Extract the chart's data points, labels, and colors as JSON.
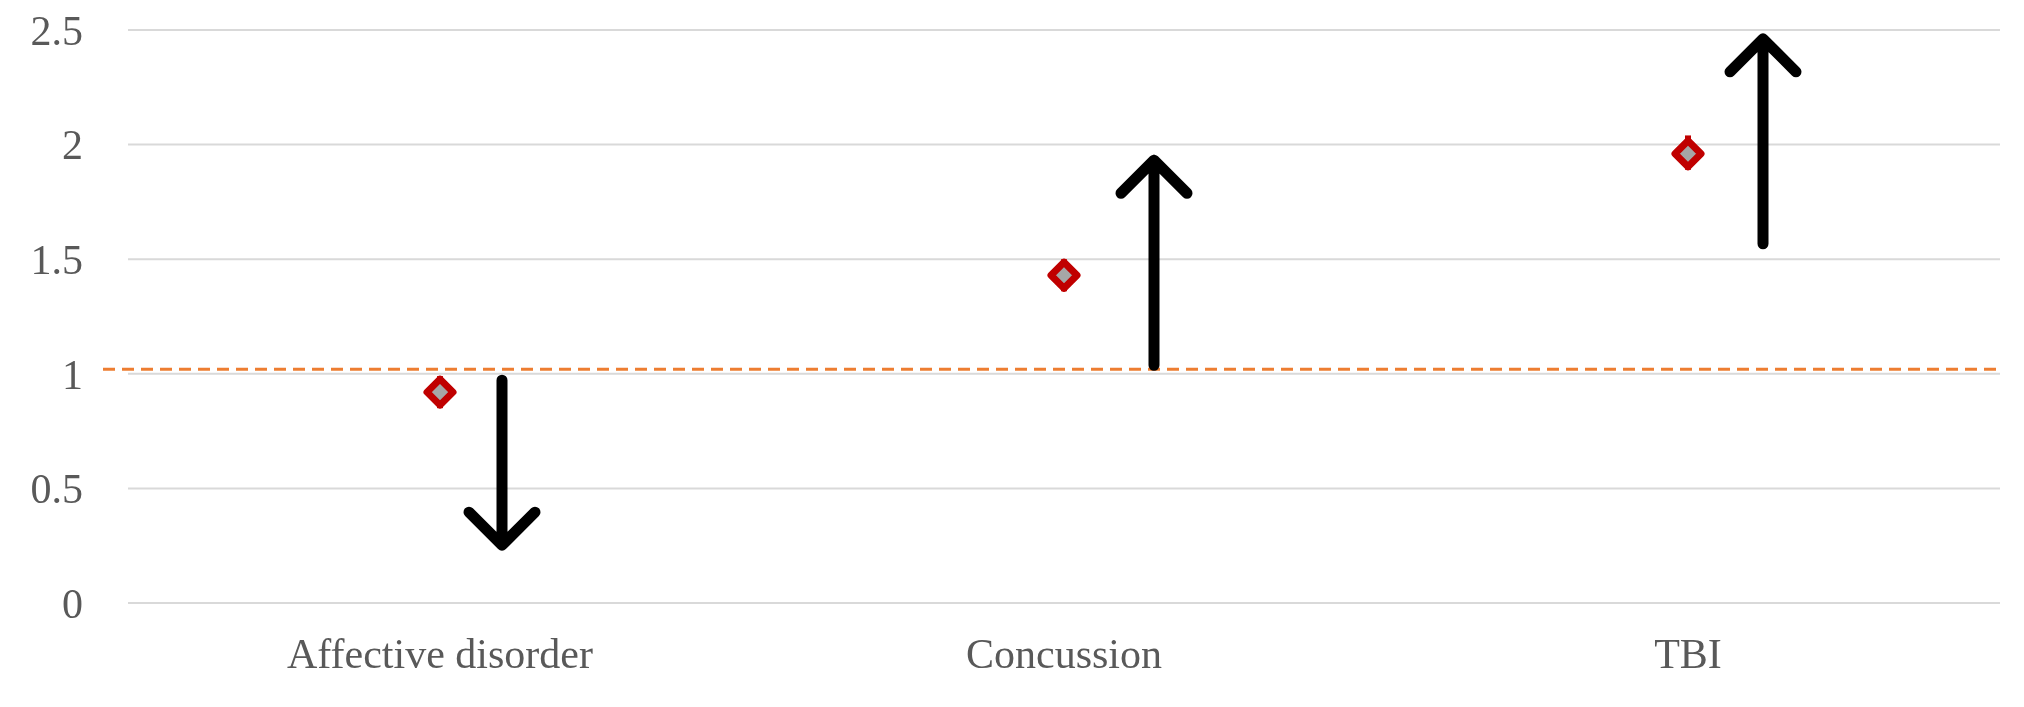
{
  "chart_data": {
    "type": "scatter",
    "categories": [
      "Affective disorder",
      "Concussion",
      "TBI"
    ],
    "series": [
      {
        "color": "#c00000",
        "values": [
          0.92,
          1.43,
          1.96
        ],
        "errors": [
          [
            0.85,
            0.99
          ],
          [
            1.36,
            1.5
          ],
          [
            1.89,
            2.04
          ]
        ]
      }
    ],
    "ylim": [
      0,
      2.5
    ],
    "yticks": [
      0,
      0.5,
      1,
      1.5,
      2,
      2.5
    ],
    "grid": "y",
    "marker": "diamond",
    "ref_lines": [
      {
        "axis": "y",
        "value": 1.02,
        "color": "#ed7d31",
        "line_style": "dashed"
      }
    ]
  }
}
